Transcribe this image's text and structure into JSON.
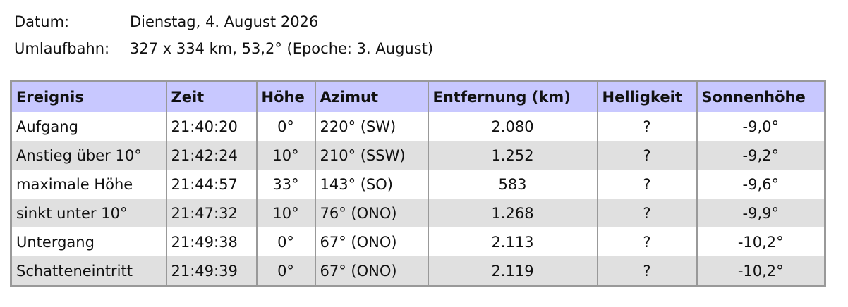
{
  "header": {
    "date_label": "Datum:",
    "date_value": "Dienstag, 4. August 2026",
    "orbit_label": "Umlaufbahn:",
    "orbit_value": "327 x 334 km, 53,2° (Epoche: 3. August)"
  },
  "table": {
    "columns": [
      "Ereignis",
      "Zeit",
      "Höhe",
      "Azimut",
      "Entfernung (km)",
      "Helligkeit",
      "Sonnenhöhe"
    ],
    "rows": [
      [
        "Aufgang",
        "21:40:20",
        "0°",
        "220° (SW)",
        "2.080",
        "?",
        "-9,0°"
      ],
      [
        "Anstieg über 10°",
        "21:42:24",
        "10°",
        "210° (SSW)",
        "1.252",
        "?",
        "-9,2°"
      ],
      [
        "maximale Höhe",
        "21:44:57",
        "33°",
        "143° (SO)",
        "583",
        "?",
        "-9,6°"
      ],
      [
        "sinkt unter 10°",
        "21:47:32",
        "10°",
        "76° (ONO)",
        "1.268",
        "?",
        "-9,9°"
      ],
      [
        "Untergang",
        "21:49:38",
        "0°",
        "67° (ONO)",
        "2.113",
        "?",
        "-10,2°"
      ],
      [
        "Schatteneintritt",
        "21:49:39",
        "0°",
        "67° (ONO)",
        "2.119",
        "?",
        "-10,2°"
      ]
    ]
  }
}
